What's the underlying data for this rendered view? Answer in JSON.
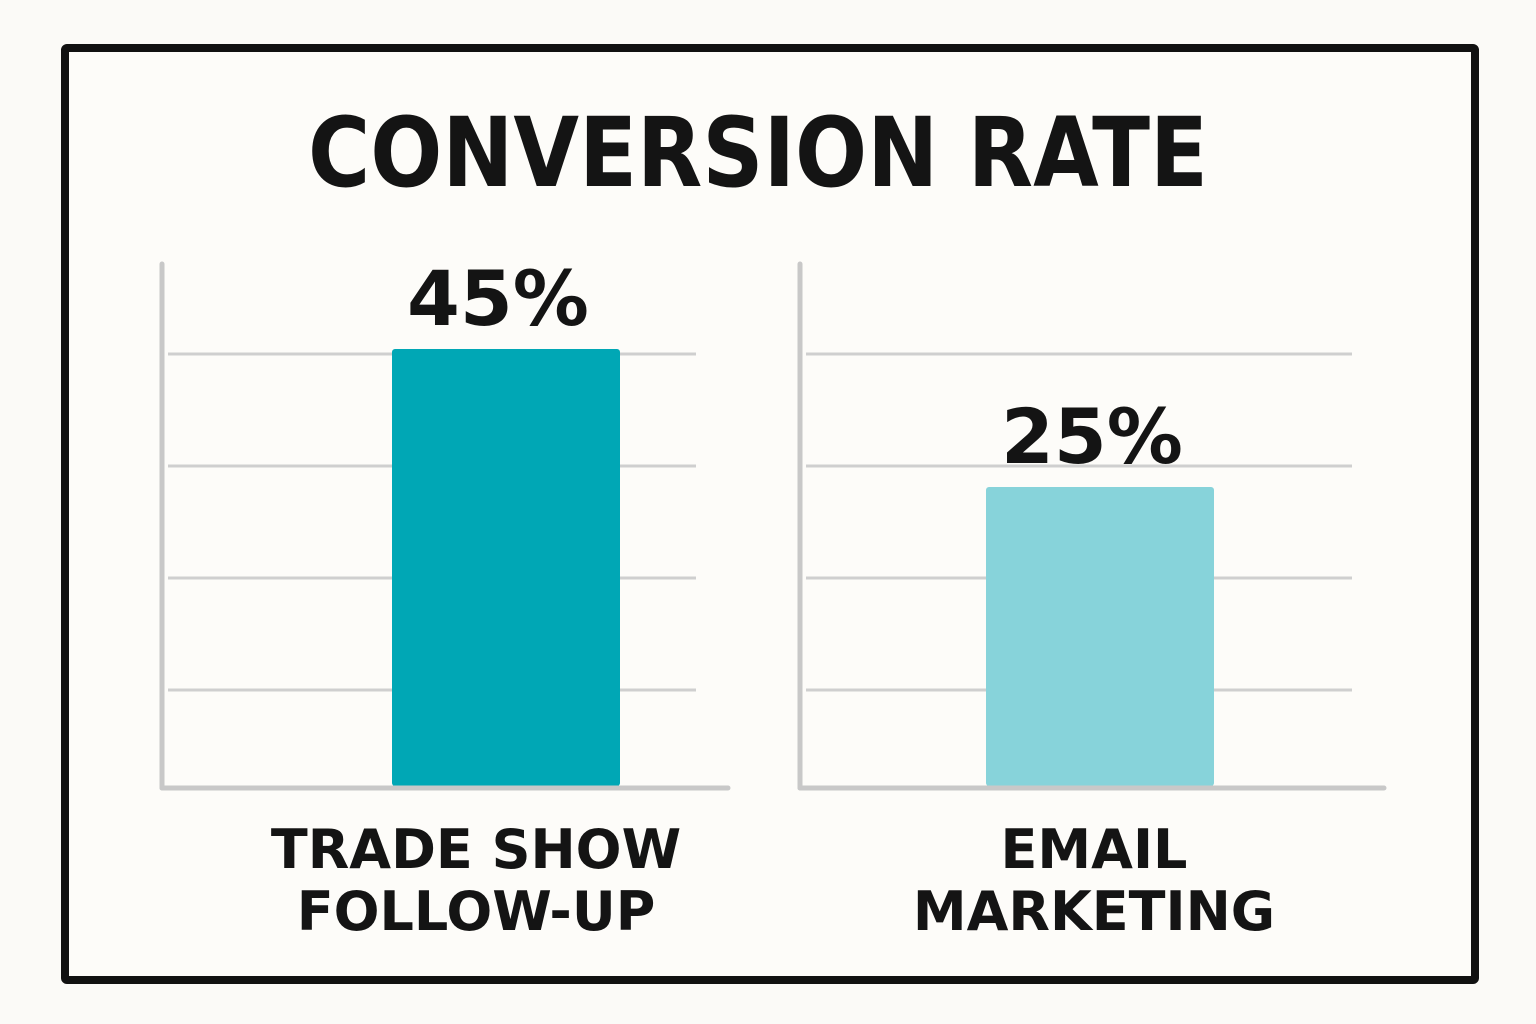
{
  "chart_data": {
    "type": "bar",
    "title": "CONVERSION RATE",
    "ylim": [
      0,
      50
    ],
    "grid": true,
    "panels": [
      {
        "category": "TRADE SHOW FOLLOW-UP",
        "category_lines": [
          "TRADE SHOW",
          "FOLLOW-UP"
        ],
        "value": 45,
        "value_label": "45%",
        "color": "#00a7b5"
      },
      {
        "category": "EMAIL MARKETING",
        "category_lines": [
          "EMAIL",
          "MARKETING"
        ],
        "value": 25,
        "value_label": "25%",
        "color": "#87d3da"
      }
    ]
  },
  "colors": {
    "frame": "#111111",
    "grid": "#cfcfcf",
    "axis": "#c8c8c8",
    "text": "#141414"
  }
}
